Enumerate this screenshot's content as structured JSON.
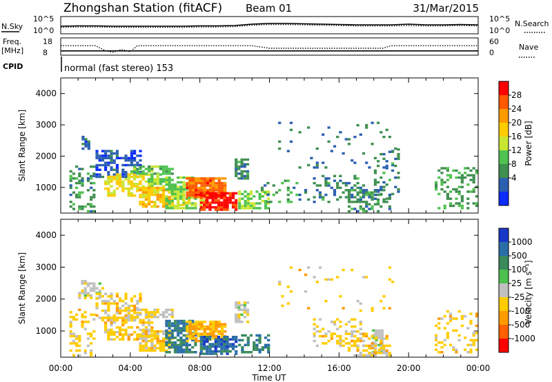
{
  "header": {
    "station": "Zhongshan Station (fitACF)",
    "beam": "Beam 01",
    "date": "31/Mar/2015",
    "cpid_label": "CPID",
    "cpid_value": "normal (fast stereo) 153"
  },
  "chart_data": [
    {
      "id": "noise",
      "type": "line",
      "left_label": "N.Sky",
      "right_label": "N.Search",
      "left_ticks": [
        "10^5",
        "10^0"
      ],
      "right_ticks": [
        "10^5",
        "10^0"
      ],
      "series": [
        {
          "name": "N.Sky",
          "style": "solid",
          "x": [
            0,
            1,
            2,
            3,
            4,
            5,
            6,
            7,
            8,
            9,
            10,
            11,
            12,
            13,
            14,
            15,
            16,
            17,
            18,
            19,
            20,
            21,
            22,
            23,
            24
          ],
          "y": [
            2.2,
            2.3,
            2.3,
            2.2,
            2.2,
            2.2,
            2.2,
            2.2,
            2.3,
            2.3,
            2.4,
            2.8,
            3.0,
            3.0,
            2.9,
            2.8,
            2.7,
            2.6,
            2.6,
            2.6,
            2.8,
            2.6,
            2.6,
            2.7,
            2.6
          ]
        },
        {
          "name": "N.Search",
          "style": "dotted",
          "x": [
            0,
            1,
            2,
            3,
            4,
            5,
            6,
            7,
            8,
            9,
            10,
            11,
            12,
            13,
            14,
            15,
            16,
            17,
            18,
            19,
            20,
            21,
            22,
            23,
            24
          ],
          "y": [
            1.9,
            2.0,
            2.0,
            1.9,
            1.9,
            1.9,
            1.9,
            1.9,
            2.0,
            2.0,
            2.1,
            2.5,
            2.7,
            2.7,
            2.6,
            2.5,
            2.4,
            2.3,
            2.3,
            2.3,
            2.4,
            2.3,
            2.3,
            2.4,
            2.3
          ]
        }
      ]
    },
    {
      "id": "freq",
      "type": "line",
      "left_label": "Freq.",
      "left_unit": "[MHz]",
      "right_label": "Nave",
      "left_ticks": [
        "18",
        "8"
      ],
      "right_ticks": [
        "60",
        "0"
      ],
      "series": [
        {
          "name": "Freq.",
          "style": "solid",
          "x": [
            0,
            24
          ],
          "y": [
            10.5,
            10.5
          ]
        },
        {
          "name": "Nave",
          "style": "dotted",
          "x": [
            0,
            1,
            2,
            2.6,
            3,
            3.5,
            4,
            4.4,
            5,
            10,
            11,
            12,
            16,
            18.5,
            19,
            20,
            21,
            22,
            23,
            24
          ],
          "y": [
            33,
            33,
            33,
            15,
            10,
            20,
            12,
            33,
            33,
            33,
            33,
            24,
            24,
            24,
            33,
            33,
            33,
            33,
            33,
            33
          ]
        }
      ]
    },
    {
      "id": "power",
      "type": "heatmap",
      "ylabel": "Slant Range [km]",
      "ylim": [
        180,
        4500
      ],
      "yticks": [
        "4000",
        "3000",
        "2000",
        "1000"
      ],
      "xlim": [
        0,
        24
      ],
      "colorbar_label": "Power [dB]",
      "colorbar_ticks": [
        "28",
        "24",
        "20",
        "16",
        "12",
        "8",
        "4"
      ],
      "colorbar_colors": [
        "#ff0000",
        "#ff5a00",
        "#ff9a00",
        "#ffcc00",
        "#c8e632",
        "#4fc24f",
        "#3f8f50",
        "#2c5fb0",
        "#0b2bff"
      ],
      "cmin": 0,
      "cmax": 32,
      "regions": [
        {
          "t": [
            0.5,
            2.0
          ],
          "r": [
            200,
            1700
          ],
          "v": 9,
          "d": 0.35
        },
        {
          "t": [
            1.2,
            1.6
          ],
          "r": [
            2200,
            2600
          ],
          "v": 6,
          "d": 0.6
        },
        {
          "t": [
            2.0,
            4.5
          ],
          "r": [
            1300,
            2200
          ],
          "v": 5,
          "d": 0.6
        },
        {
          "t": [
            2.5,
            5.2
          ],
          "r": [
            700,
            1400
          ],
          "v": 18,
          "d": 0.55
        },
        {
          "t": [
            4.0,
            6.5
          ],
          "r": [
            1400,
            1700
          ],
          "v": 12,
          "d": 0.75
        },
        {
          "t": [
            5.0,
            6.2
          ],
          "r": [
            1000,
            1400
          ],
          "v": 14,
          "d": 0.6
        },
        {
          "t": [
            4.5,
            6.5
          ],
          "r": [
            350,
            1000
          ],
          "v": 20,
          "d": 0.8
        },
        {
          "t": [
            6.0,
            7.8
          ],
          "r": [
            300,
            1300
          ],
          "v": 14,
          "d": 0.65
        },
        {
          "t": [
            7.2,
            9.5
          ],
          "r": [
            650,
            1300
          ],
          "v": 26,
          "d": 0.9
        },
        {
          "t": [
            8.0,
            10.0
          ],
          "r": [
            250,
            800
          ],
          "v": 30,
          "d": 0.9
        },
        {
          "t": [
            6.8,
            8.2
          ],
          "r": [
            400,
            700
          ],
          "v": 17,
          "d": 0.5
        },
        {
          "t": [
            10.0,
            10.8
          ],
          "r": [
            1250,
            1900
          ],
          "v": 8,
          "d": 0.65
        },
        {
          "t": [
            10.2,
            12.0
          ],
          "r": [
            300,
            900
          ],
          "v": 14,
          "d": 0.6
        },
        {
          "t": [
            11.5,
            14.2
          ],
          "r": [
            500,
            1200
          ],
          "v": 9,
          "d": 0.15
        },
        {
          "t": [
            12.5,
            19.5
          ],
          "r": [
            1600,
            3100
          ],
          "v": 7,
          "d": 0.06
        },
        {
          "t": [
            14.5,
            17.5
          ],
          "r": [
            500,
            1400
          ],
          "v": 8,
          "d": 0.3
        },
        {
          "t": [
            16.5,
            19.0
          ],
          "r": [
            200,
            900
          ],
          "v": 9,
          "d": 0.45
        },
        {
          "t": [
            18.0,
            19.5
          ],
          "r": [
            600,
            2200
          ],
          "v": 8,
          "d": 0.2
        },
        {
          "t": [
            21.5,
            24.0
          ],
          "r": [
            300,
            1600
          ],
          "v": 10,
          "d": 0.3
        }
      ]
    },
    {
      "id": "velocity",
      "type": "heatmap",
      "ylabel": "Slant Range [km]",
      "ylim": [
        180,
        4500
      ],
      "yticks": [
        "4000",
        "3000",
        "2000",
        "1000"
      ],
      "xlim": [
        0,
        24
      ],
      "xticks": [
        "00:00",
        "04:00",
        "08:00",
        "12:00",
        "16:00",
        "20:00",
        "00:00"
      ],
      "xlabel": "Time UT",
      "colorbar_label": "Velocity [m s⁻¹]",
      "colorbar_ticks": [
        "1000",
        "500",
        "100",
        "25",
        "-25",
        "-100",
        "-500",
        "-1000"
      ],
      "colorbar_colors": [
        "#1838c8",
        "#2a6ea8",
        "#3a8a5c",
        "#4ec04e",
        "#c0c0c0",
        "#ffcc00",
        "#ff9a00",
        "#ff6000",
        "#ff0000"
      ],
      "cmin": -1200,
      "cmax": 1200,
      "regions": [
        {
          "t": [
            0.5,
            2.0
          ],
          "r": [
            200,
            1700
          ],
          "v": -250,
          "d": 0.35
        },
        {
          "t": [
            1.0,
            2.5
          ],
          "r": [
            2000,
            2600
          ],
          "v": 0,
          "d": 0.5
        },
        {
          "t": [
            2.0,
            4.5
          ],
          "r": [
            1300,
            2200
          ],
          "v": -250,
          "d": 0.55
        },
        {
          "t": [
            2.5,
            5.2
          ],
          "r": [
            700,
            1400
          ],
          "v": -250,
          "d": 0.55
        },
        {
          "t": [
            4.0,
            6.5
          ],
          "r": [
            1400,
            1700
          ],
          "v": -150,
          "d": 0.75
        },
        {
          "t": [
            4.5,
            6.5
          ],
          "r": [
            350,
            1000
          ],
          "v": -250,
          "d": 0.75
        },
        {
          "t": [
            6.0,
            7.8
          ],
          "r": [
            300,
            1300
          ],
          "v": 700,
          "d": 0.7
        },
        {
          "t": [
            7.2,
            9.5
          ],
          "r": [
            650,
            1300
          ],
          "v": -400,
          "d": 0.8
        },
        {
          "t": [
            8.0,
            10.0
          ],
          "r": [
            250,
            800
          ],
          "v": 800,
          "d": 0.8
        },
        {
          "t": [
            10.0,
            10.8
          ],
          "r": [
            1250,
            1900
          ],
          "v": 0,
          "d": 0.7
        },
        {
          "t": [
            10.2,
            12.0
          ],
          "r": [
            300,
            900
          ],
          "v": 600,
          "d": 0.55
        },
        {
          "t": [
            12.5,
            19.5
          ],
          "r": [
            1600,
            3100
          ],
          "v": -250,
          "d": 0.06
        },
        {
          "t": [
            14.5,
            17.5
          ],
          "r": [
            500,
            1400
          ],
          "v": -200,
          "d": 0.3
        },
        {
          "t": [
            17.9,
            18.5
          ],
          "r": [
            300,
            1000
          ],
          "v": 0,
          "d": 0.8
        },
        {
          "t": [
            16.5,
            19.0
          ],
          "r": [
            200,
            900
          ],
          "v": -250,
          "d": 0.4
        },
        {
          "t": [
            21.5,
            24.0
          ],
          "r": [
            300,
            1600
          ],
          "v": -200,
          "d": 0.3
        }
      ]
    }
  ]
}
